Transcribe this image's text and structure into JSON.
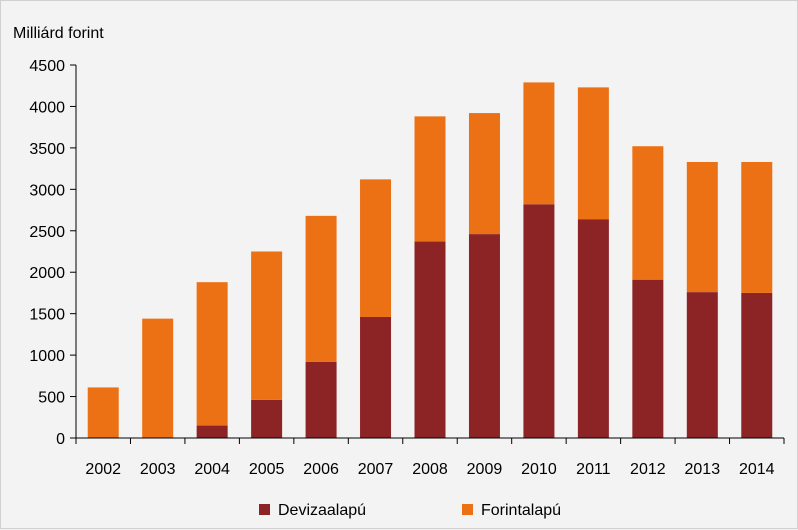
{
  "chart_data": {
    "type": "bar",
    "stacked": true,
    "unit_label": "Milliárd forint",
    "categories": [
      "2002",
      "2003",
      "2004",
      "2005",
      "2006",
      "2007",
      "2008",
      "2009",
      "2010",
      "2011",
      "2012",
      "2013",
      "2014"
    ],
    "series": [
      {
        "name": "Devizaalapú",
        "color": "#8c2325",
        "values": [
          0,
          0,
          150,
          460,
          920,
          1460,
          2370,
          2460,
          2820,
          2640,
          1910,
          1760,
          1750
        ]
      },
      {
        "name": "Forintalapú",
        "color": "#ec7014",
        "values": [
          610,
          1440,
          1730,
          1790,
          1760,
          1660,
          1510,
          1460,
          1470,
          1590,
          1610,
          1570,
          1580
        ]
      }
    ],
    "y_ticks": [
      "0",
      "500",
      "1000",
      "1500",
      "2000",
      "2500",
      "3000",
      "3500",
      "4000",
      "4500"
    ],
    "ylim": [
      0,
      4500
    ],
    "grid": false,
    "legend_position": "bottom"
  }
}
